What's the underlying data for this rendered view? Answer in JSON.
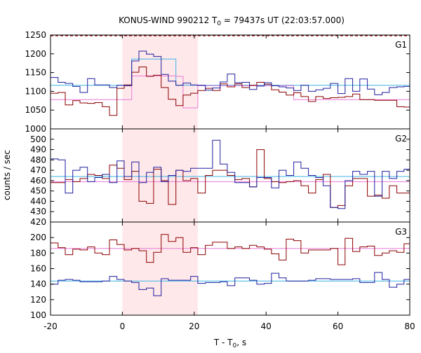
{
  "chart_data": {
    "type": "line",
    "title": "KONUS-WIND 990212 T",
    "title_sub": "0",
    "title_rest": " = 79437s UT (22:03:57.000)",
    "xlabel": "T - T",
    "xlabel_sub": "0",
    "xlabel_rest": ", s",
    "ylabel": "counts / sec",
    "xlim": [
      -20,
      80
    ],
    "xticks": [
      "-20",
      "0",
      "20",
      "40",
      "60",
      "80"
    ],
    "shaded_interval": [
      0,
      21
    ],
    "colors": {
      "shade": "#ffe8ea",
      "red": "#8b0000",
      "blue": "#1f1f9e",
      "pink": "#e87ad8",
      "cyan": "#3cb4e6",
      "dashed": "#8b0000"
    },
    "panels": [
      {
        "label": "G1",
        "ylim": [
          1000,
          1250
        ],
        "yticks": [
          "1000",
          "1050",
          "1100",
          "1150",
          "1200",
          "1250"
        ],
        "x_edges": [
          -20,
          -17.9,
          -15.9,
          -13.8,
          -11.8,
          -9.7,
          -7.7,
          -5.6,
          -3.6,
          -1.5,
          0.5,
          2.6,
          4.6,
          6.7,
          8.7,
          10.8,
          12.8,
          14.9,
          16.9,
          19.0,
          21.0,
          23.1,
          25.1,
          27.2,
          29.2,
          31.3,
          33.3,
          35.4,
          37.4,
          39.5,
          41.5,
          43.6,
          45.6,
          47.7,
          49.7,
          51.8,
          53.8,
          55.9,
          57.9,
          60.0,
          62.0,
          64.1,
          66.1,
          68.2,
          70.2,
          72.3,
          74.3,
          76.4,
          78.4,
          80
        ],
        "series": [
          {
            "color": "red",
            "values": [
              1095,
              1097,
              1064,
              1075,
              1069,
              1068,
              1070,
              1059,
              1036,
              1108,
              1117,
              1151,
              1165,
              1140,
              1143,
              1110,
              1079,
              1062,
              1090,
              1095,
              1102,
              1108,
              1102,
              1120,
              1112,
              1120,
              1110,
              1116,
              1124,
              1119,
              1104,
              1098,
              1090,
              1096,
              1086,
              1073,
              1086,
              1081,
              1083,
              1084,
              1086,
              1093,
              1078,
              1078,
              1076,
              1076,
              1076,
              1059,
              1058,
              1056
            ]
          },
          {
            "color": "blue",
            "values": [
              1137,
              1124,
              1121,
              1113,
              1097,
              1134,
              1117,
              1117,
              1110,
              1116,
              1115,
              1181,
              1207,
              1199,
              1193,
              1145,
              1127,
              1116,
              1122,
              1117,
              1116,
              1103,
              1109,
              1125,
              1146,
              1123,
              1124,
              1105,
              1114,
              1123,
              1115,
              1112,
              1109,
              1102,
              1116,
              1100,
              1104,
              1108,
              1121,
              1094,
              1134,
              1100,
              1133,
              1106,
              1091,
              1097,
              1110,
              1112,
              1113,
              1112
            ]
          },
          {
            "color": "pink",
            "values": [
              1078,
              1078,
              1078,
              1078,
              1078,
              1078,
              1078,
              1078,
              1078,
              1078,
              1078,
              1141,
              1141,
              1141,
              1141,
              1141,
              1141,
              1140,
              1056,
              1056,
              1115,
              1115,
              1115,
              1115,
              1115,
              1115,
              1115,
              1115,
              1115,
              1115,
              1115,
              1115,
              1115,
              1078,
              1078,
              1078,
              1078,
              1078,
              1078,
              1078,
              1078,
              1078,
              1078,
              1078,
              1078,
              1078,
              1078,
              1078,
              1078,
              1078
            ]
          },
          {
            "color": "cyan",
            "values": [
              1116,
              1116,
              1116,
              1116,
              1116,
              1116,
              1116,
              1116,
              1116,
              1116,
              1116,
              1186,
              1186,
              1186,
              1186,
              1186,
              1186,
              1116,
              1116,
              1116,
              1116,
              1116,
              1116,
              1116,
              1116,
              1116,
              1116,
              1116,
              1116,
              1116,
              1116,
              1116,
              1116,
              1116,
              1116,
              1116,
              1116,
              1116,
              1116,
              1116,
              1116,
              1116,
              1116,
              1116,
              1116,
              1116,
              1116,
              1116,
              1116,
              1116
            ]
          }
        ],
        "dashed_top": 1248
      },
      {
        "label": "G2",
        "ylim": [
          420,
          510
        ],
        "yticks": [
          "420",
          "430",
          "440",
          "450",
          "460",
          "470",
          "480",
          "490",
          "500"
        ],
        "x_edges": [
          -20,
          -17.9,
          -15.9,
          -13.8,
          -11.8,
          -9.7,
          -7.7,
          -5.6,
          -3.6,
          -1.5,
          0.5,
          2.6,
          4.6,
          6.7,
          8.7,
          10.8,
          12.8,
          14.9,
          16.9,
          19.0,
          21.0,
          23.1,
          25.1,
          27.2,
          29.2,
          31.3,
          33.3,
          35.4,
          37.4,
          39.5,
          41.5,
          43.6,
          45.6,
          47.7,
          49.7,
          51.8,
          53.8,
          55.9,
          57.9,
          60.0,
          62.0,
          64.1,
          66.1,
          68.2,
          70.2,
          72.3,
          74.3,
          76.4,
          78.4,
          80
        ],
        "series": [
          {
            "color": "red",
            "values": [
              458,
              458,
              461,
              459,
              462,
              466,
              465,
              462,
              475,
              472,
              461,
              469,
              440,
              438,
              471,
              460,
              437,
              470,
              460,
              462,
              448,
              465,
              470,
              470,
              465,
              461,
              462,
              454,
              490,
              462,
              459,
              458,
              459,
              460,
              455,
              448,
              461,
              466,
              434,
              436,
              455,
              462,
              462,
              445,
              446,
              443,
              455,
              448,
              448,
              446
            ]
          },
          {
            "color": "blue",
            "values": [
              481,
              480,
              448,
              470,
              473,
              459,
              463,
              466,
              458,
              479,
              464,
              478,
              458,
              468,
              473,
              459,
              465,
              470,
              469,
              472,
              472,
              472,
              499,
              476,
              468,
              458,
              458,
              454,
              463,
              463,
              453,
              470,
              465,
              478,
              472,
              465,
              463,
              455,
              434,
              433,
              460,
              469,
              466,
              469,
              445,
              469,
              462,
              469,
              471,
              470
            ]
          },
          {
            "color": "pink",
            "values": [
              459,
              459,
              459,
              459,
              459,
              459,
              459,
              459,
              459,
              459,
              459,
              459,
              459,
              459,
              459,
              459,
              459,
              459,
              459,
              459,
              459,
              459,
              459,
              459,
              459,
              459,
              459,
              459,
              459,
              459,
              459,
              459,
              459,
              459,
              459,
              459,
              459,
              459,
              459,
              459,
              459,
              459,
              459,
              459,
              459,
              459,
              459,
              459,
              459,
              459
            ]
          },
          {
            "color": "cyan",
            "values": [
              464,
              464,
              464,
              464,
              464,
              464,
              464,
              464,
              464,
              464,
              464,
              464,
              464,
              464,
              464,
              464,
              464,
              464,
              464,
              464,
              464,
              464,
              464,
              464,
              464,
              464,
              464,
              464,
              464,
              464,
              464,
              464,
              464,
              464,
              464,
              464,
              464,
              464,
              464,
              464,
              464,
              464,
              464,
              464,
              464,
              464,
              464,
              464,
              464,
              464
            ]
          }
        ]
      },
      {
        "label": "G3",
        "ylim": [
          100,
          220
        ],
        "yticks": [
          "100",
          "120",
          "140",
          "160",
          "180",
          "200"
        ],
        "x_edges": [
          -20,
          -17.9,
          -15.9,
          -13.8,
          -11.8,
          -9.7,
          -7.7,
          -5.6,
          -3.6,
          -1.5,
          0.5,
          2.6,
          4.6,
          6.7,
          8.7,
          10.8,
          12.8,
          14.9,
          16.9,
          19.0,
          21.0,
          23.1,
          25.1,
          27.2,
          29.2,
          31.3,
          33.3,
          35.4,
          37.4,
          39.5,
          41.5,
          43.6,
          45.6,
          47.7,
          49.7,
          51.8,
          53.8,
          55.9,
          57.9,
          60.0,
          62.0,
          64.1,
          66.1,
          68.2,
          70.2,
          72.3,
          74.3,
          76.4,
          78.4,
          80
        ],
        "series": [
          {
            "color": "red",
            "values": [
              193,
              187,
              178,
              185,
              184,
              188,
              180,
              178,
              197,
              191,
              184,
              186,
              183,
              168,
              181,
              204,
              195,
              200,
              181,
              187,
              178,
              190,
              194,
              194,
              186,
              188,
              186,
              190,
              188,
              185,
              179,
              171,
              198,
              196,
              180,
              184,
              184,
              184,
              186,
              165,
              199,
              182,
              188,
              189,
              177,
              180,
              183,
              181,
              192,
              193
            ]
          },
          {
            "color": "blue",
            "values": [
              140,
              145,
              146,
              145,
              143,
              143,
              143,
              144,
              150,
              146,
              144,
              142,
              133,
              135,
              125,
              147,
              145,
              145,
              145,
              150,
              141,
              142,
              142,
              143,
              138,
              148,
              148,
              145,
              140,
              141,
              154,
              148,
              144,
              144,
              144,
              145,
              147,
              147,
              146,
              146,
              146,
              147,
              142,
              142,
              155,
              146,
              136,
              140,
              146,
              146
            ]
          },
          {
            "color": "pink",
            "values": [
              186,
              186,
              186,
              186,
              186,
              186,
              186,
              186,
              186,
              186,
              186,
              186,
              186,
              186,
              186,
              186,
              186,
              186,
              186,
              186,
              186,
              186,
              186,
              186,
              186,
              186,
              186,
              186,
              186,
              186,
              186,
              186,
              186,
              186,
              186,
              186,
              186,
              186,
              186,
              186,
              186,
              186,
              186,
              186,
              186,
              186,
              186,
              186,
              186,
              186
            ]
          },
          {
            "color": "cyan",
            "values": [
              144,
              144,
              144,
              144,
              144,
              144,
              144,
              144,
              144,
              144,
              144,
              144,
              144,
              144,
              144,
              144,
              144,
              144,
              144,
              144,
              144,
              144,
              144,
              144,
              144,
              144,
              144,
              144,
              144,
              144,
              144,
              144,
              144,
              144,
              144,
              144,
              144,
              144,
              144,
              144,
              144,
              144,
              144,
              144,
              144,
              144,
              144,
              144,
              144,
              144
            ]
          }
        ]
      }
    ]
  }
}
